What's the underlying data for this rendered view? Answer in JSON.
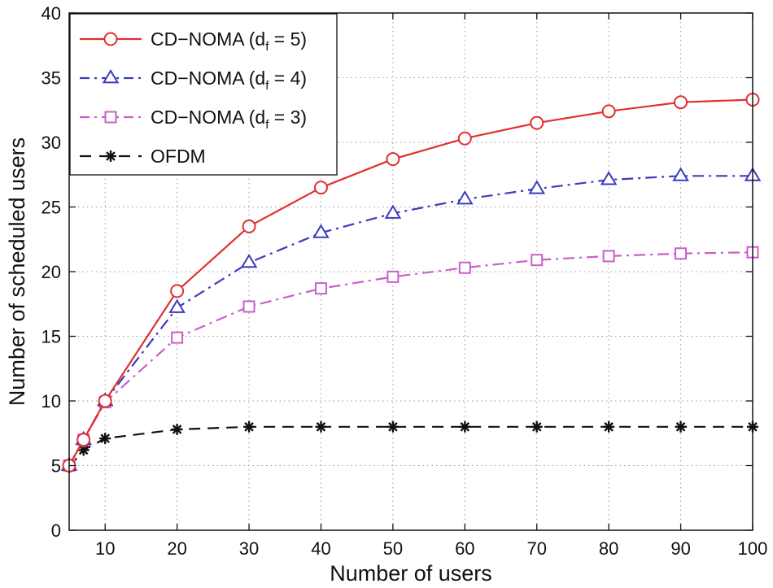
{
  "chart_data": {
    "type": "line",
    "title": "",
    "xlabel": "Number of users",
    "ylabel": "Number of scheduled users",
    "xlim": [
      5,
      100
    ],
    "ylim": [
      0,
      40
    ],
    "xticks": [
      10,
      20,
      30,
      40,
      50,
      60,
      70,
      80,
      90,
      100
    ],
    "yticks": [
      0,
      5,
      10,
      15,
      20,
      25,
      30,
      35,
      40
    ],
    "grid": true,
    "legend_position": "top-left",
    "series": [
      {
        "name": "CD-NOMA (d_f = 5)",
        "legend_prefix": "CD−NOMA (d",
        "legend_sub": "f",
        "legend_suffix": " = 5)",
        "color": "#e0302f",
        "dash": "solid",
        "marker": "circle",
        "x": [
          5,
          7,
          10,
          20,
          30,
          40,
          50,
          60,
          70,
          80,
          90,
          100
        ],
        "y": [
          5,
          7,
          10,
          18.5,
          23.5,
          26.5,
          28.7,
          30.3,
          31.5,
          32.4,
          33.1,
          33.3
        ]
      },
      {
        "name": "CD-NOMA (d_f = 4)",
        "legend_prefix": "CD−NOMA (d",
        "legend_sub": "f",
        "legend_suffix": " = 4)",
        "color": "#3b3bbf",
        "dash": "dashdot",
        "marker": "triangle",
        "x": [
          5,
          7,
          10,
          20,
          30,
          40,
          50,
          60,
          70,
          80,
          90,
          100
        ],
        "y": [
          5,
          7,
          10,
          17.2,
          20.7,
          23,
          24.5,
          25.6,
          26.4,
          27.1,
          27.4,
          27.4
        ]
      },
      {
        "name": "CD-NOMA (d_f = 3)",
        "legend_prefix": "CD−NOMA (d",
        "legend_sub": "f",
        "legend_suffix": " = 3)",
        "color": "#c85fc8",
        "dash": "dashdot",
        "marker": "square",
        "x": [
          5,
          7,
          10,
          20,
          30,
          40,
          50,
          60,
          70,
          80,
          90,
          100
        ],
        "y": [
          5,
          7,
          9.9,
          14.9,
          17.3,
          18.7,
          19.6,
          20.3,
          20.9,
          21.2,
          21.4,
          21.5
        ]
      },
      {
        "name": "OFDM",
        "legend_prefix": "OFDM",
        "legend_sub": "",
        "legend_suffix": "",
        "color": "#111111",
        "dash": "dashed",
        "marker": "star",
        "x": [
          5,
          7,
          10,
          20,
          30,
          40,
          50,
          60,
          70,
          80,
          90,
          100
        ],
        "y": [
          4.9,
          6.2,
          7.1,
          7.8,
          8,
          8,
          8,
          8,
          8,
          8,
          8,
          8
        ]
      }
    ]
  }
}
